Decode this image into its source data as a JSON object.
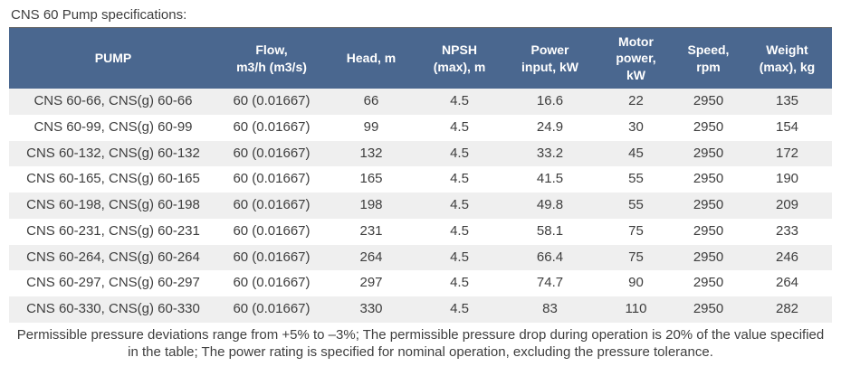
{
  "page": {
    "title": "CNS 60 Pump specifications:"
  },
  "table": {
    "columns": [
      {
        "label": "PUMP"
      },
      {
        "label": "Flow,\nm3/h (m3/s)"
      },
      {
        "label": "Head, m"
      },
      {
        "label": "NPSH\n(max), m"
      },
      {
        "label": "Power\ninput, kW"
      },
      {
        "label": "Motor\npower,\nkW"
      },
      {
        "label": "Speed,\nrpm"
      },
      {
        "label": "Weight\n(max), kg"
      }
    ],
    "rows": [
      [
        "CNS 60-66, CNS(g) 60-66",
        "60 (0.01667)",
        "66",
        "4.5",
        "16.6",
        "22",
        "2950",
        "135"
      ],
      [
        "CNS 60-99, CNS(g) 60-99",
        "60 (0.01667)",
        "99",
        "4.5",
        "24.9",
        "30",
        "2950",
        "154"
      ],
      [
        "CNS 60-132, CNS(g) 60-132",
        "60 (0.01667)",
        "132",
        "4.5",
        "33.2",
        "45",
        "2950",
        "172"
      ],
      [
        "CNS 60-165, CNS(g) 60-165",
        "60 (0.01667)",
        "165",
        "4.5",
        "41.5",
        "55",
        "2950",
        "190"
      ],
      [
        "CNS 60-198, CNS(g) 60-198",
        "60 (0.01667)",
        "198",
        "4.5",
        "49.8",
        "55",
        "2950",
        "209"
      ],
      [
        "CNS 60-231, CNS(g) 60-231",
        "60 (0.01667)",
        "231",
        "4.5",
        "58.1",
        "75",
        "2950",
        "233"
      ],
      [
        "CNS 60-264, CNS(g) 60-264",
        "60 (0.01667)",
        "264",
        "4.5",
        "66.4",
        "75",
        "2950",
        "246"
      ],
      [
        "CNS 60-297, CNS(g) 60-297",
        "60 (0.01667)",
        "297",
        "4.5",
        "74.7",
        "90",
        "2950",
        "264"
      ],
      [
        "CNS 60-330, CNS(g) 60-330",
        "60 (0.01667)",
        "330",
        "4.5",
        "83",
        "110",
        "2950",
        "282"
      ]
    ]
  },
  "footer": {
    "note": "Permissible pressure deviations range from +5% to –3%; The permissible pressure drop during operation is 20% of the value specified in the table; The power rating is specified for nominal operation, excluding the pressure tolerance."
  },
  "colors": {
    "header_bg": "#4a678f",
    "stripe": "#efefef",
    "text": "#3e3e3e"
  }
}
